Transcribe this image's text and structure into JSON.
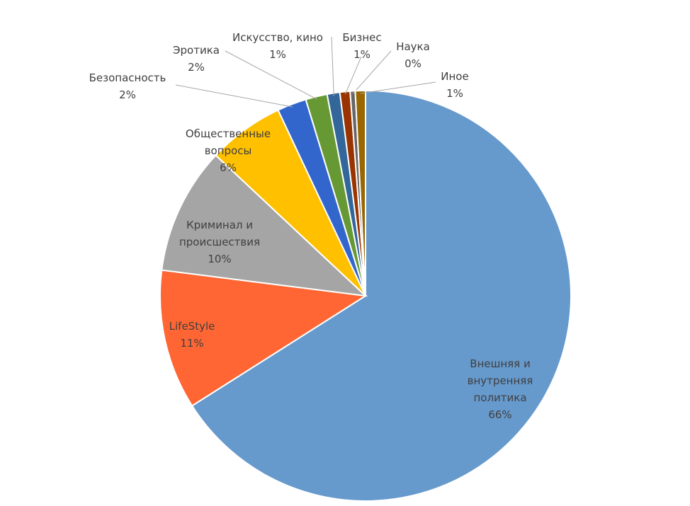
{
  "chart_data": {
    "type": "pie",
    "categories": [
      "Внешняя и внутренняя политика",
      "LifeStyle",
      "Криминал и происшествия",
      "Общественные вопросы",
      "Безопасность",
      "Эротика",
      "Искусство, кино",
      "Бизнес",
      "Наука",
      "Иное"
    ],
    "values": [
      66.0,
      11,
      10,
      6,
      2.3,
      1.7,
      1,
      0.8,
      0.4,
      0.8
    ],
    "value_labels": [
      "66%",
      "11%",
      "10%",
      "6%",
      "2%",
      "2%",
      "1%",
      "1%",
      "0%",
      "1%"
    ],
    "colors": [
      "#6699cc",
      "#ff6633",
      "#a5a5a5",
      "#ffc000",
      "#3366cc",
      "#669933",
      "#336699",
      "#993300",
      "#666666",
      "#996600"
    ]
  }
}
